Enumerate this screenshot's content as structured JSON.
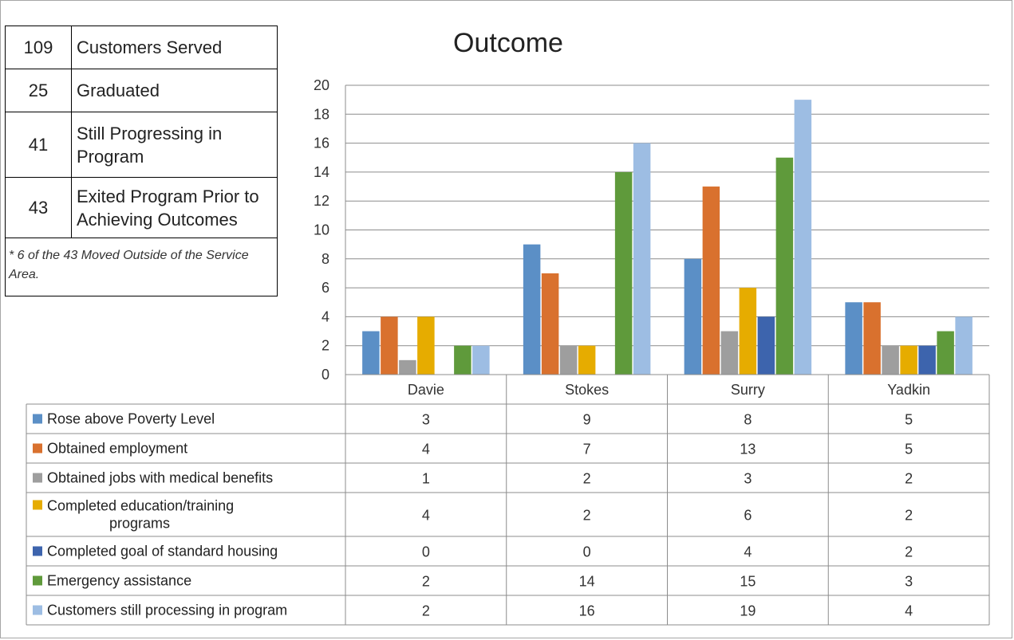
{
  "summary": {
    "rows": [
      {
        "number": "109",
        "label": "Customers Served"
      },
      {
        "number": "25",
        "label": "Graduated"
      },
      {
        "number": "41",
        "label": "Still Progressing in Program"
      },
      {
        "number": "43",
        "label": "Exited Program Prior to Achieving Outcomes"
      }
    ],
    "note": "* 6 of the 43 Moved Outside of the Service Area."
  },
  "chart_data": {
    "type": "bar",
    "title": "Outcome",
    "categories": [
      "Davie",
      "Stokes",
      "Surry",
      "Yadkin"
    ],
    "ylim": [
      0,
      20
    ],
    "yticks": [
      0,
      2,
      4,
      6,
      8,
      10,
      12,
      14,
      16,
      18,
      20
    ],
    "grid": true,
    "legend": "data-table",
    "series": [
      {
        "name": "Rose above Poverty Level",
        "color": "#5b8fc6",
        "values": [
          3,
          9,
          8,
          5
        ]
      },
      {
        "name": "Obtained employment",
        "color": "#d9712e",
        "values": [
          4,
          7,
          13,
          5
        ]
      },
      {
        "name": "Obtained jobs with medical benefits",
        "color": "#9e9e9e",
        "values": [
          1,
          2,
          3,
          2
        ]
      },
      {
        "name": "Completed education/training programs",
        "color": "#e6ac00",
        "values": [
          4,
          2,
          6,
          2
        ]
      },
      {
        "name": "Completed goal of standard housing",
        "color": "#3d64ad",
        "values": [
          0,
          0,
          4,
          2
        ]
      },
      {
        "name": "Emergency assistance",
        "color": "#5f9a3b",
        "values": [
          2,
          14,
          15,
          3
        ]
      },
      {
        "name": "Customers still processing in program",
        "color": "#9dbde3",
        "values": [
          2,
          16,
          19,
          4
        ]
      }
    ]
  }
}
